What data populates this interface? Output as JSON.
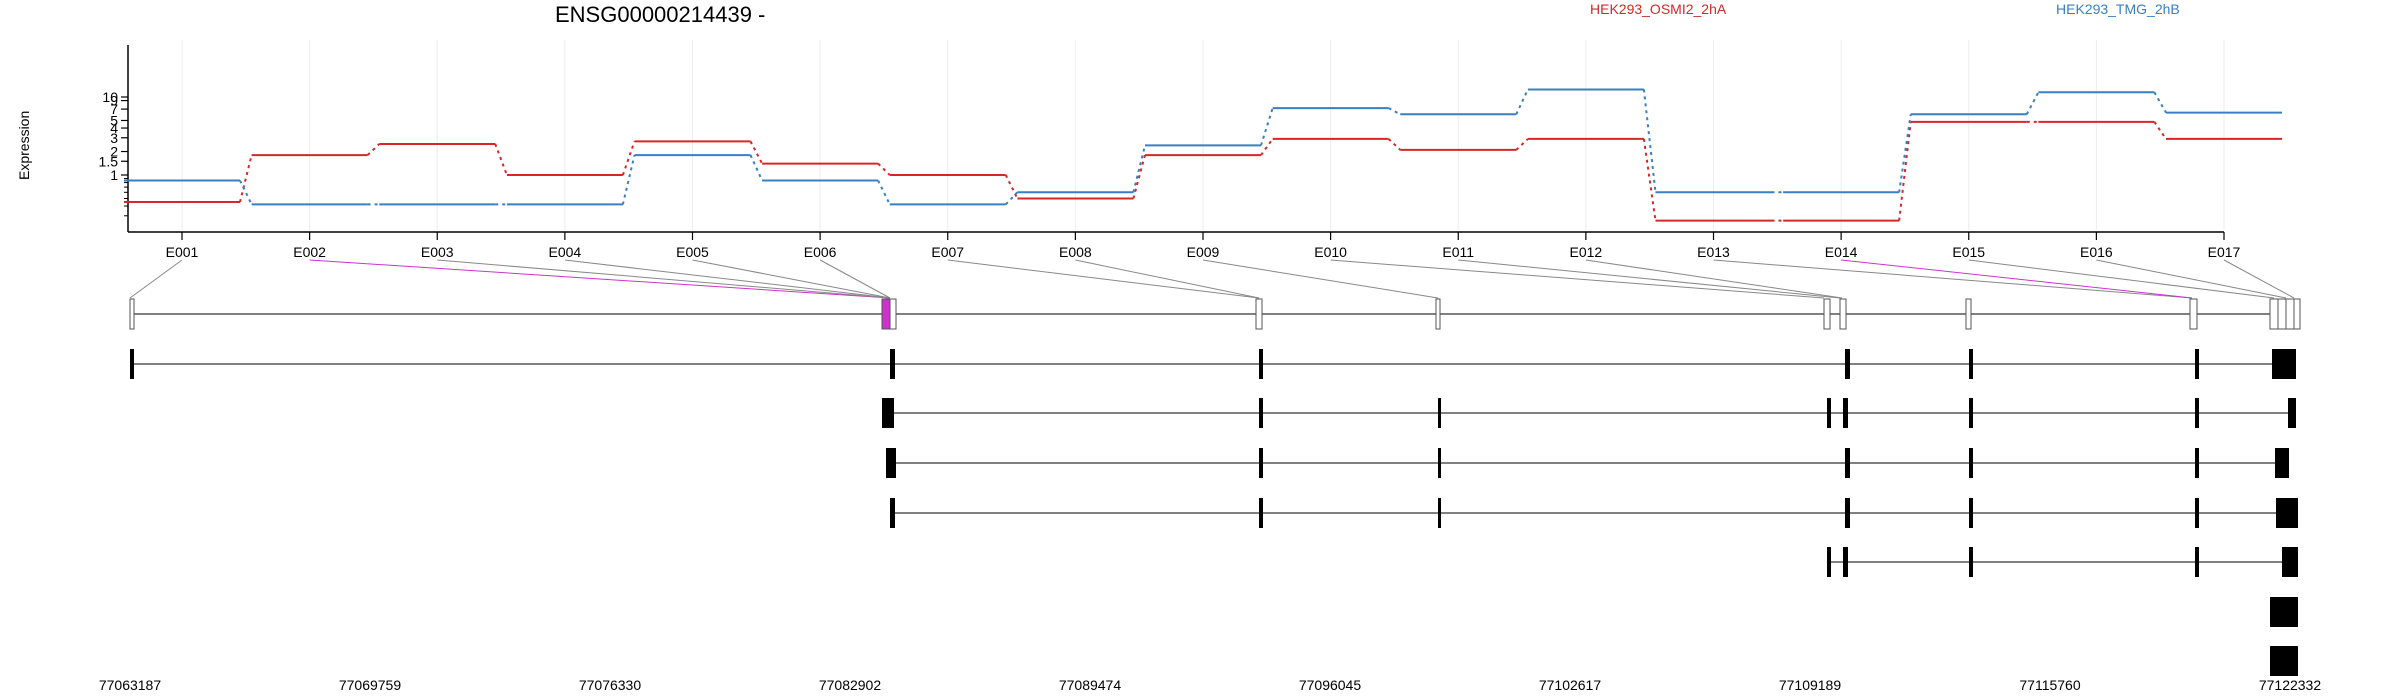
{
  "chart_data": {
    "type": "line",
    "title": "ENSG00000214439 -",
    "ylabel": "Expression",
    "xlabel": "",
    "y_scale": "log",
    "y_ticks": [
      1,
      1.5,
      2,
      3,
      4,
      5,
      7,
      9,
      10
    ],
    "y_tick_labels": [
      "1",
      "1.5",
      "2",
      "3",
      "4",
      "5",
      "7",
      "9",
      "10"
    ],
    "grid": "vertical",
    "legend_position": "top",
    "categories": [
      "E001",
      "E002",
      "E003",
      "E004",
      "E005",
      "E006",
      "E007",
      "E008",
      "E009",
      "E010",
      "E011",
      "E012",
      "E013",
      "E014",
      "E015",
      "E016",
      "E017"
    ],
    "series": [
      {
        "name": "HEK293_OSMI2_2hA",
        "color": "#d62728",
        "values": [
          0.45,
          1.8,
          2.5,
          1.0,
          2.7,
          1.4,
          1.0,
          0.5,
          1.8,
          2.9,
          2.1,
          2.9,
          0.26,
          0.26,
          4.8,
          4.8,
          2.9
        ]
      },
      {
        "name": "HEK293_TMG_2hB",
        "color": "#3a7fc1",
        "values": [
          0.85,
          0.42,
          0.42,
          0.42,
          1.8,
          0.85,
          0.42,
          0.6,
          2.4,
          7.2,
          6.0,
          12.5,
          0.6,
          0.6,
          6.0,
          11.5,
          6.3
        ]
      }
    ],
    "gene_model": {
      "coordinate_labels": [
        "77063187",
        "77069759",
        "77076330",
        "77082902",
        "77089474",
        "77096045",
        "77102617",
        "77109189",
        "77115760",
        "77122332"
      ],
      "exon_bin_colors": [
        "#ffffff",
        "#cc33cc",
        "#ffffff",
        "#ffffff",
        "#ffffff",
        "#ffffff",
        "#ffffff",
        "#ffffff",
        "#ffffff",
        "#ffffff",
        "#ffffff",
        "#ffffff",
        "#ffffff",
        "#cc33cc",
        "#c8c8c8",
        "#c8c8c8",
        "#c8c8c8"
      ],
      "highlight_color": "#cc33cc",
      "transcript_count": 7
    }
  }
}
